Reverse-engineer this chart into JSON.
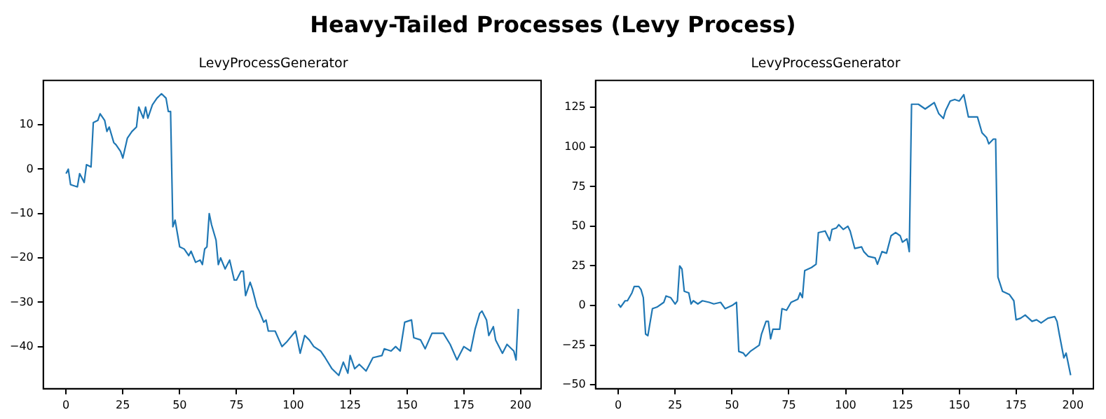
{
  "chart_data": [
    {
      "type": "line",
      "title": "LevyProcessGenerator",
      "annotations": [
        "Heavy-Tailed Processes (Levy Process)"
      ],
      "xlim": [
        -10,
        209
      ],
      "ylim": [
        -49.5,
        20
      ],
      "xticks": [
        0,
        25,
        50,
        75,
        100,
        125,
        150,
        175,
        200
      ],
      "yticks": [
        {
          "value": -40,
          "label": "−40"
        },
        {
          "value": -30,
          "label": "−30"
        },
        {
          "value": -20,
          "label": "−20"
        },
        {
          "value": -10,
          "label": "−10"
        },
        0,
        10
      ],
      "grid": false,
      "legend": false,
      "marker": "none",
      "line_style": "solid",
      "series": [
        {
          "color": "#1f77b4",
          "x": [
            0,
            1,
            2,
            5,
            6,
            8,
            9,
            11,
            12,
            14,
            15,
            17,
            18,
            19,
            21,
            22,
            24,
            25,
            27,
            29,
            31,
            32,
            34,
            35,
            36,
            38,
            40,
            41,
            42,
            44,
            45,
            46,
            47,
            48,
            49,
            50,
            52,
            54,
            55,
            57,
            59,
            60,
            61,
            62,
            63,
            64,
            66,
            67,
            68,
            70,
            72,
            74,
            75,
            77,
            78,
            79,
            81,
            82,
            84,
            85,
            87,
            88,
            89,
            92,
            95,
            97,
            101,
            103,
            105,
            107,
            109,
            112,
            114,
            117,
            120,
            122,
            124,
            125,
            127,
            129,
            132,
            135,
            139,
            140,
            143,
            145,
            147,
            149,
            152,
            153,
            156,
            158,
            161,
            163,
            166,
            169,
            172,
            175,
            178,
            180,
            182,
            183,
            185,
            186,
            188,
            189,
            192,
            194,
            197,
            198,
            199
          ],
          "values": [
            -1,
            0,
            -3.5,
            -4,
            -1,
            -3,
            1,
            0.5,
            10.5,
            11,
            12.5,
            11,
            8.5,
            9.5,
            6,
            5.5,
            4,
            2.5,
            7,
            8.5,
            9.5,
            14,
            11.5,
            14,
            11.5,
            14.5,
            16,
            16.5,
            17,
            16,
            13,
            13,
            -13,
            -11.5,
            -14.5,
            -17.5,
            -18,
            -19.5,
            -18.5,
            -21,
            -20.5,
            -21.5,
            -18,
            -17.5,
            -10,
            -12.5,
            -16,
            -21.5,
            -20,
            -22.5,
            -20.5,
            -25,
            -25,
            -23,
            -23,
            -28.5,
            -25.5,
            -27,
            -31,
            -32,
            -34.5,
            -34,
            -36.5,
            -36.5,
            -40,
            -39,
            -36.5,
            -41.5,
            -37.5,
            -38.5,
            -40,
            -41,
            -42.5,
            -45,
            -46.5,
            -43.5,
            -46,
            -42,
            -45,
            -44,
            -45.5,
            -42.5,
            -42,
            -40.5,
            -41,
            -40,
            -41,
            -34.5,
            -34,
            -38,
            -38.5,
            -40.5,
            -37,
            -37,
            -37,
            -39.5,
            -43,
            -40,
            -41,
            -36,
            -32.5,
            -32,
            -34,
            -37.5,
            -35.5,
            -38.5,
            -41.5,
            -39.5,
            -41,
            -43,
            -31.5
          ]
        }
      ]
    },
    {
      "type": "line",
      "title": "LevyProcessGenerator",
      "xlim": [
        -10,
        209
      ],
      "ylim": [
        -52.5,
        142
      ],
      "xticks": [
        0,
        25,
        50,
        75,
        100,
        125,
        150,
        175,
        200
      ],
      "yticks": [
        {
          "value": -50,
          "label": "−50"
        },
        {
          "value": -25,
          "label": "−25"
        },
        0,
        25,
        50,
        75,
        100,
        125
      ],
      "grid": false,
      "legend": false,
      "marker": "none",
      "line_style": "solid",
      "series": [
        {
          "color": "#1f77b4",
          "x": [
            0,
            1,
            3,
            4,
            6,
            7,
            9,
            10,
            11,
            12,
            13,
            15,
            17,
            20,
            21,
            23,
            25,
            26,
            27,
            28,
            29,
            31,
            32,
            33,
            35,
            37,
            40,
            42,
            45,
            47,
            50,
            52,
            53,
            55,
            56,
            58,
            60,
            62,
            63,
            65,
            66,
            67,
            68,
            71,
            72,
            74,
            76,
            79,
            80,
            81,
            82,
            85,
            87,
            88,
            91,
            93,
            94,
            96,
            97,
            99,
            101,
            102,
            104,
            107,
            108,
            110,
            113,
            114,
            116,
            118,
            120,
            122,
            124,
            125,
            127,
            128,
            129,
            132,
            135,
            137,
            139,
            141,
            143,
            144,
            146,
            148,
            150,
            152,
            154,
            156,
            158,
            160,
            162,
            163,
            165,
            166,
            167,
            169,
            172,
            174,
            175,
            177,
            179,
            182,
            184,
            186,
            189,
            192,
            193,
            194,
            196,
            197,
            198,
            199
          ],
          "values": [
            1,
            -1,
            3,
            3,
            8,
            12,
            12,
            10,
            5,
            -18,
            -19,
            -2,
            -1,
            2,
            6,
            5,
            1,
            3,
            25,
            23,
            9,
            8,
            1,
            3,
            1,
            3,
            2,
            1,
            2,
            -2,
            0,
            2,
            -29,
            -30,
            -32,
            -29,
            -27,
            -25,
            -18,
            -10,
            -10,
            -21,
            -15,
            -15,
            -2,
            -3,
            2,
            4,
            8,
            5,
            22,
            24,
            26,
            46,
            47,
            41,
            48,
            49,
            51,
            48,
            50,
            47,
            36,
            37,
            34,
            31,
            30,
            26,
            34,
            33,
            44,
            46,
            44,
            40,
            42,
            34,
            127,
            127,
            124,
            126,
            128,
            121,
            118,
            123,
            129,
            130,
            129,
            133,
            119,
            119,
            119,
            109,
            106,
            102,
            105,
            105,
            18,
            9,
            7,
            3,
            -9,
            -8,
            -6,
            -10,
            -9,
            -11,
            -8,
            -7,
            -10,
            -18,
            -33,
            -30,
            -37,
            -44
          ]
        }
      ]
    }
  ]
}
